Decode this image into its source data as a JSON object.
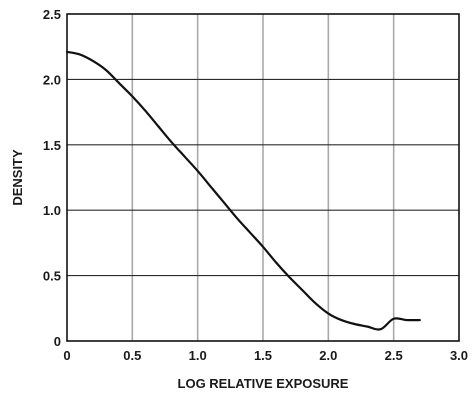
{
  "chart_data": {
    "type": "line",
    "title": "",
    "xlabel": "LOG RELATIVE EXPOSURE",
    "ylabel": "DENSITY",
    "xlim": [
      0,
      3.0
    ],
    "ylim": [
      0,
      2.5
    ],
    "x_ticks": [
      0,
      0.5,
      1.0,
      1.5,
      2.0,
      2.5,
      3.0
    ],
    "x_tick_labels": [
      "0",
      "0.5",
      "1.0",
      "1.5",
      "2.0",
      "2.5",
      "3.0"
    ],
    "y_ticks": [
      0,
      0.5,
      1.0,
      1.5,
      2.0,
      2.5
    ],
    "y_tick_labels": [
      "0",
      "0.5",
      "1.0",
      "1.5",
      "2.0",
      "2.5"
    ],
    "grid": true,
    "legend": "none",
    "series": [
      {
        "x": [
          0.0,
          0.1,
          0.2,
          0.3,
          0.4,
          0.5,
          0.6,
          0.7,
          0.8,
          0.9,
          1.0,
          1.1,
          1.2,
          1.3,
          1.4,
          1.5,
          1.6,
          1.7,
          1.8,
          1.9,
          2.0,
          2.1,
          2.2,
          2.3,
          2.4,
          2.5,
          2.6,
          2.7
        ],
        "y": [
          2.21,
          2.19,
          2.14,
          2.07,
          1.97,
          1.87,
          1.76,
          1.64,
          1.52,
          1.41,
          1.3,
          1.18,
          1.06,
          0.94,
          0.83,
          0.72,
          0.6,
          0.49,
          0.39,
          0.29,
          0.21,
          0.16,
          0.13,
          0.11,
          0.09,
          0.17,
          0.16,
          0.16
        ]
      }
    ],
    "colors": {
      "line": "#111111",
      "grid": "#a9a9a9",
      "axis": "#111111"
    }
  }
}
